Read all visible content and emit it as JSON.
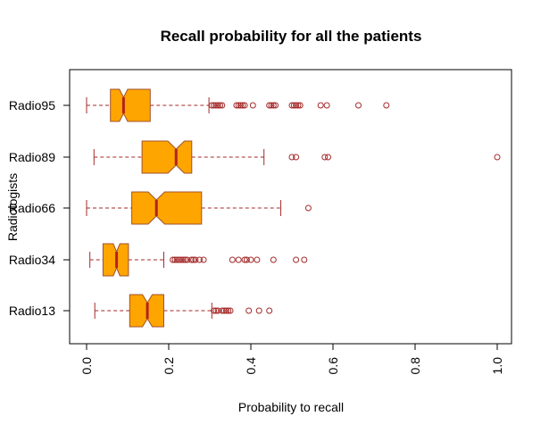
{
  "chart_data": {
    "type": "boxplot",
    "orientation": "horizontal",
    "notched": true,
    "title": "Recall probability for all the patients",
    "xlabel": "Probability to recall",
    "ylabel": "Radiologists",
    "xlim": [
      0.0,
      1.0
    ],
    "xticks": [
      "0.0",
      "0.2",
      "0.4",
      "0.6",
      "0.8",
      "1.0"
    ],
    "colors": {
      "box_fill": "#FFA500",
      "box_border": "#A0522D",
      "median": "#B22222",
      "whisker": "#A52A2A",
      "outlier": "#A52A2A"
    },
    "categories": [
      "Radio13",
      "Radio34",
      "Radio66",
      "Radio89",
      "Radio95"
    ],
    "boxes": [
      {
        "name": "Radio13",
        "whisker_low": 0.02,
        "q1": 0.105,
        "median": 0.148,
        "q3": 0.188,
        "whisker_high": 0.305,
        "notch_half": 0.012,
        "outliers": [
          0.31,
          0.315,
          0.32,
          0.33,
          0.335,
          0.34,
          0.345,
          0.35,
          0.395,
          0.42,
          0.445
        ]
      },
      {
        "name": "Radio34",
        "whisker_low": 0.008,
        "q1": 0.04,
        "median": 0.073,
        "q3": 0.102,
        "whisker_high": 0.188,
        "notch_half": 0.008,
        "outliers": [
          0.21,
          0.215,
          0.22,
          0.225,
          0.23,
          0.235,
          0.24,
          0.245,
          0.255,
          0.26,
          0.265,
          0.275,
          0.285,
          0.355,
          0.37,
          0.385,
          0.39,
          0.4,
          0.415,
          0.455,
          0.51,
          0.53
        ]
      },
      {
        "name": "Radio66",
        "whisker_low": 0.0,
        "q1": 0.11,
        "median": 0.17,
        "q3": 0.28,
        "whisker_high": 0.473,
        "notch_half": 0.02,
        "outliers": [
          0.54
        ]
      },
      {
        "name": "Radio89",
        "whisker_low": 0.018,
        "q1": 0.135,
        "median": 0.218,
        "q3": 0.256,
        "whisker_high": 0.432,
        "notch_half": 0.02,
        "outliers": [
          0.5,
          0.51,
          0.58,
          0.588,
          1.0
        ]
      },
      {
        "name": "Radio95",
        "whisker_low": 0.0,
        "q1": 0.058,
        "median": 0.09,
        "q3": 0.155,
        "whisker_high": 0.298,
        "notch_half": 0.01,
        "outliers": [
          0.305,
          0.31,
          0.315,
          0.32,
          0.325,
          0.33,
          0.365,
          0.37,
          0.375,
          0.38,
          0.385,
          0.405,
          0.445,
          0.45,
          0.455,
          0.46,
          0.5,
          0.505,
          0.51,
          0.515,
          0.52,
          0.57,
          0.585,
          0.662,
          0.73
        ]
      }
    ]
  }
}
